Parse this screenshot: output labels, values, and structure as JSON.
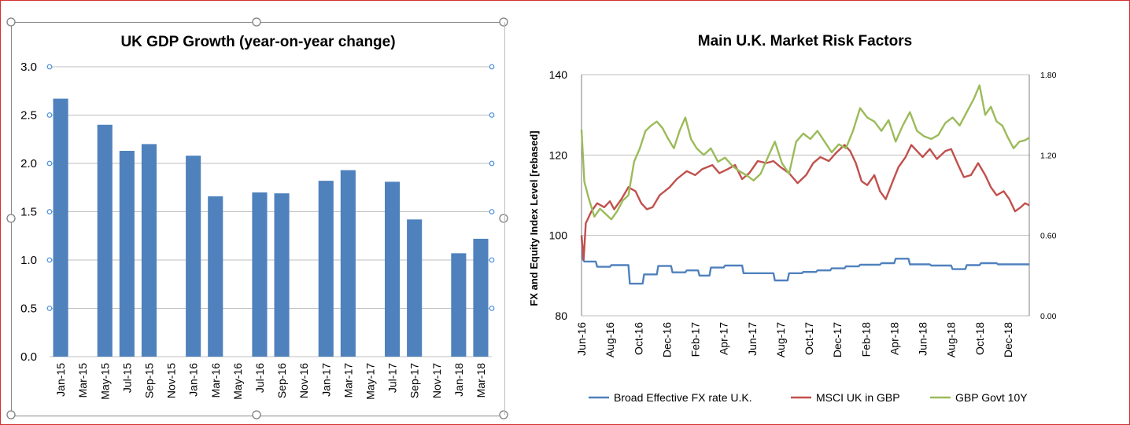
{
  "charts": {
    "left": {
      "chart_data": {
        "type": "bar",
        "title": "UK GDP Growth (year-on-year change)",
        "categories": [
          "Jan-15",
          "Mar-15",
          "May-15",
          "Jul-15",
          "Sep-15",
          "Nov-15",
          "Jan-16",
          "Mar-16",
          "May-16",
          "Jul-16",
          "Sep-16",
          "Nov-16",
          "Jan-17",
          "Mar-17",
          "May-17",
          "Jul-17",
          "Sep-17",
          "Nov-17",
          "Jan-18",
          "Mar-18"
        ],
        "bars": [
          {
            "label": "Jan-15",
            "value": 2.67
          },
          {
            "label": "May-15",
            "value": 2.4
          },
          {
            "label": "Jul-15",
            "value": 2.13
          },
          {
            "label": "Sep-15",
            "value": 2.2
          },
          {
            "label": "Jan-16",
            "value": 2.08
          },
          {
            "label": "Mar-16",
            "value": 1.66
          },
          {
            "label": "Jul-16",
            "value": 1.7
          },
          {
            "label": "Sep-16",
            "value": 1.69
          },
          {
            "label": "Jan-17",
            "value": 1.82
          },
          {
            "label": "Mar-17",
            "value": 1.93
          },
          {
            "label": "Jul-17",
            "value": 1.81
          },
          {
            "label": "Sep-17",
            "value": 1.42
          },
          {
            "label": "Jan-18",
            "value": 1.07
          },
          {
            "label": "Mar-18",
            "value": 1.22
          }
        ],
        "yticks": [
          "0.0",
          "0.5",
          "1.0",
          "1.5",
          "2.0",
          "2.5",
          "3.0"
        ],
        "ylim": [
          0,
          3.0
        ],
        "grid": true,
        "color": "#4f81bd"
      }
    },
    "right": {
      "chart_data": {
        "type": "line",
        "title": "Main U.K. Market Risk Factors",
        "ylabel": "FX and Equity Index Level [rebased]",
        "ylim": [
          80,
          140
        ],
        "y2lim": [
          0.0,
          1.8
        ],
        "yticks": [
          "80",
          "100",
          "120",
          "140"
        ],
        "y2ticks": [
          "0.00",
          "0.60",
          "1.20",
          "1.80"
        ],
        "xticks": [
          "Jun-16",
          "Aug-16",
          "Oct-16",
          "Dec-16",
          "Feb-17",
          "Apr-17",
          "Jun-17",
          "Aug-17",
          "Oct-17",
          "Dec-17",
          "Feb-18",
          "Apr-18",
          "Jun-18",
          "Aug-18",
          "Oct-18",
          "Dec-18"
        ],
        "xrange_months": [
          0,
          31.5
        ],
        "series": [
          {
            "name": "Broad Effective FX rate U.K.",
            "axis": "left",
            "color": "#4f81bd",
            "points": [
              [
                0,
                100
              ],
              [
                0.1,
                94
              ],
              [
                0.2,
                93.5
              ],
              [
                1,
                93.5
              ],
              [
                1.1,
                92.2
              ],
              [
                2,
                92.2
              ],
              [
                2.1,
                92.6
              ],
              [
                3.3,
                92.6
              ],
              [
                3.4,
                88
              ],
              [
                4.3,
                88
              ],
              [
                4.4,
                90.3
              ],
              [
                5.3,
                90.3
              ],
              [
                5.4,
                92.4
              ],
              [
                6.3,
                92.4
              ],
              [
                6.4,
                90.8
              ],
              [
                7.3,
                90.8
              ],
              [
                7.4,
                91.3
              ],
              [
                8.2,
                91.3
              ],
              [
                8.3,
                90
              ],
              [
                9,
                90
              ],
              [
                9.1,
                92
              ],
              [
                10,
                92
              ],
              [
                10.1,
                92.5
              ],
              [
                11.3,
                92.5
              ],
              [
                11.4,
                90.6
              ],
              [
                13.5,
                90.6
              ],
              [
                13.6,
                88.8
              ],
              [
                14.5,
                88.8
              ],
              [
                14.6,
                90.6
              ],
              [
                15.5,
                90.6
              ],
              [
                15.6,
                90.9
              ],
              [
                16.5,
                90.9
              ],
              [
                16.6,
                91.3
              ],
              [
                17.5,
                91.3
              ],
              [
                17.6,
                91.8
              ],
              [
                18.5,
                91.8
              ],
              [
                18.6,
                92.3
              ],
              [
                19.5,
                92.3
              ],
              [
                19.6,
                92.7
              ],
              [
                21,
                92.7
              ],
              [
                21.1,
                93.1
              ],
              [
                22,
                93.1
              ],
              [
                22.1,
                94.2
              ],
              [
                23,
                94.2
              ],
              [
                23.1,
                92.8
              ],
              [
                24.5,
                92.8
              ],
              [
                24.6,
                92.5
              ],
              [
                26,
                92.5
              ],
              [
                26.1,
                91.6
              ],
              [
                27,
                91.6
              ],
              [
                27.1,
                92.6
              ],
              [
                28,
                92.6
              ],
              [
                28.1,
                93.1
              ],
              [
                29.2,
                93.1
              ],
              [
                29.3,
                92.8
              ],
              [
                31.5,
                92.8
              ]
            ]
          },
          {
            "name": "MSCI UK in GBP",
            "axis": "left",
            "color": "#c0504d",
            "points": [
              [
                0,
                100
              ],
              [
                0.15,
                94
              ],
              [
                0.3,
                103
              ],
              [
                0.7,
                106
              ],
              [
                1.1,
                108
              ],
              [
                1.6,
                107
              ],
              [
                2,
                108.5
              ],
              [
                2.3,
                106.5
              ],
              [
                2.8,
                109
              ],
              [
                3.3,
                112
              ],
              [
                3.8,
                111
              ],
              [
                4.2,
                108
              ],
              [
                4.6,
                106.5
              ],
              [
                5,
                107
              ],
              [
                5.5,
                110
              ],
              [
                6.2,
                112
              ],
              [
                6.7,
                114
              ],
              [
                7.4,
                116
              ],
              [
                8,
                115
              ],
              [
                8.5,
                116.5
              ],
              [
                9.2,
                117.5
              ],
              [
                9.7,
                115.5
              ],
              [
                10.3,
                116.5
              ],
              [
                10.8,
                117.5
              ],
              [
                11.3,
                114
              ],
              [
                11.8,
                115.5
              ],
              [
                12.4,
                118.5
              ],
              [
                13,
                118
              ],
              [
                13.5,
                118.5
              ],
              [
                14,
                117
              ],
              [
                14.6,
                115.5
              ],
              [
                15.2,
                113
              ],
              [
                15.8,
                115
              ],
              [
                16.3,
                118
              ],
              [
                16.8,
                119.5
              ],
              [
                17.4,
                118.5
              ],
              [
                17.9,
                120.5
              ],
              [
                18.5,
                122.5
              ],
              [
                18.9,
                121
              ],
              [
                19.3,
                118
              ],
              [
                19.7,
                113.5
              ],
              [
                20.1,
                112.5
              ],
              [
                20.6,
                115
              ],
              [
                21,
                111
              ],
              [
                21.4,
                109
              ],
              [
                21.9,
                113.5
              ],
              [
                22.3,
                117
              ],
              [
                22.8,
                119.5
              ],
              [
                23.2,
                122.5
              ],
              [
                23.6,
                121
              ],
              [
                24,
                119.5
              ],
              [
                24.5,
                121.5
              ],
              [
                25,
                119
              ],
              [
                25.6,
                121
              ],
              [
                26,
                121.5
              ],
              [
                26.5,
                117.5
              ],
              [
                26.9,
                114.5
              ],
              [
                27.4,
                115
              ],
              [
                27.9,
                118
              ],
              [
                28.4,
                115
              ],
              [
                28.8,
                112
              ],
              [
                29.2,
                110
              ],
              [
                29.7,
                111
              ],
              [
                30.1,
                109
              ],
              [
                30.5,
                106
              ],
              [
                30.9,
                107
              ],
              [
                31.2,
                108
              ],
              [
                31.5,
                107.5
              ]
            ]
          },
          {
            "name": "GBP Govt 10Y",
            "axis": "right",
            "color": "#9bbb59",
            "points": [
              [
                0,
                1.39
              ],
              [
                0.2,
                1.0
              ],
              [
                0.5,
                0.88
              ],
              [
                0.9,
                0.74
              ],
              [
                1.3,
                0.8
              ],
              [
                1.7,
                0.76
              ],
              [
                2.1,
                0.72
              ],
              [
                2.5,
                0.78
              ],
              [
                2.9,
                0.86
              ],
              [
                3.3,
                0.9
              ],
              [
                3.7,
                1.15
              ],
              [
                4.1,
                1.25
              ],
              [
                4.5,
                1.38
              ],
              [
                4.9,
                1.42
              ],
              [
                5.3,
                1.45
              ],
              [
                5.7,
                1.4
              ],
              [
                6.1,
                1.32
              ],
              [
                6.5,
                1.25
              ],
              [
                6.9,
                1.38
              ],
              [
                7.3,
                1.48
              ],
              [
                7.7,
                1.32
              ],
              [
                8.1,
                1.25
              ],
              [
                8.6,
                1.2
              ],
              [
                9.1,
                1.25
              ],
              [
                9.6,
                1.15
              ],
              [
                10.1,
                1.18
              ],
              [
                10.6,
                1.12
              ],
              [
                11.1,
                1.08
              ],
              [
                11.6,
                1.05
              ],
              [
                12.1,
                1.01
              ],
              [
                12.6,
                1.06
              ],
              [
                13.1,
                1.18
              ],
              [
                13.6,
                1.3
              ],
              [
                14.1,
                1.14
              ],
              [
                14.6,
                1.06
              ],
              [
                15.1,
                1.3
              ],
              [
                15.6,
                1.36
              ],
              [
                16.1,
                1.32
              ],
              [
                16.6,
                1.38
              ],
              [
                17.1,
                1.3
              ],
              [
                17.6,
                1.22
              ],
              [
                18.1,
                1.28
              ],
              [
                18.6,
                1.25
              ],
              [
                19.1,
                1.38
              ],
              [
                19.6,
                1.55
              ],
              [
                20.1,
                1.48
              ],
              [
                20.6,
                1.45
              ],
              [
                21.1,
                1.38
              ],
              [
                21.6,
                1.46
              ],
              [
                22.1,
                1.3
              ],
              [
                22.6,
                1.42
              ],
              [
                23.1,
                1.52
              ],
              [
                23.6,
                1.38
              ],
              [
                24.1,
                1.34
              ],
              [
                24.6,
                1.32
              ],
              [
                25.1,
                1.35
              ],
              [
                25.6,
                1.44
              ],
              [
                26.1,
                1.48
              ],
              [
                26.6,
                1.42
              ],
              [
                27.1,
                1.52
              ],
              [
                27.6,
                1.62
              ],
              [
                28.0,
                1.72
              ],
              [
                28.4,
                1.5
              ],
              [
                28.8,
                1.56
              ],
              [
                29.2,
                1.45
              ],
              [
                29.6,
                1.42
              ],
              [
                30.0,
                1.33
              ],
              [
                30.4,
                1.25
              ],
              [
                30.8,
                1.3
              ],
              [
                31.2,
                1.31
              ],
              [
                31.5,
                1.33
              ]
            ]
          }
        ]
      }
    }
  }
}
